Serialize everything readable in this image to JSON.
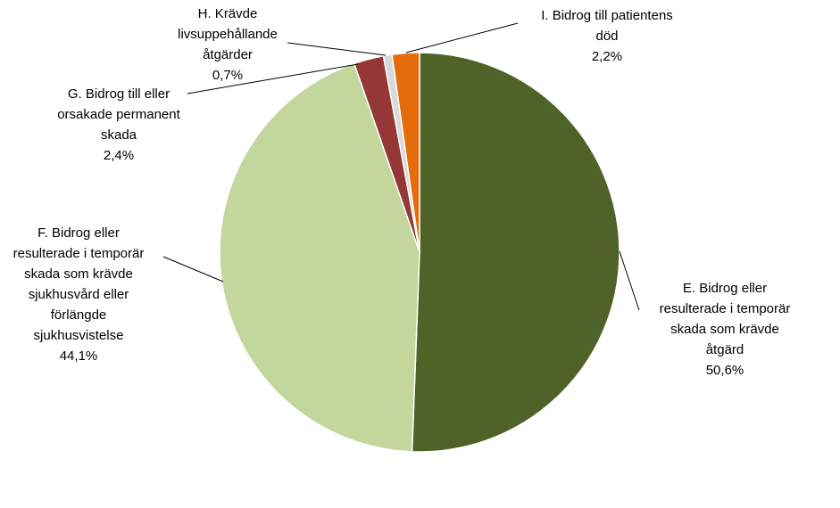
{
  "chart_data": {
    "type": "pie",
    "title": "",
    "start_angle_deg": 0,
    "direction": "clockwise",
    "slices": [
      {
        "label_lines": [
          "E. Bidrog eller",
          "resulterade i temporär",
          "skada som krävde",
          "åtgärd"
        ],
        "value": 50.6,
        "value_label": "50,6%",
        "color": "#4F6228"
      },
      {
        "label_lines": [
          "F. Bidrog eller",
          "resulterade i temporär",
          "skada som krävde",
          "sjukhusvård eller",
          "förlängde",
          "sjukhusvistelse"
        ],
        "value": 44.1,
        "value_label": "44,1%",
        "color": "#C3D69B"
      },
      {
        "label_lines": [
          "G. Bidrog till eller",
          "orsakade permanent",
          "skada"
        ],
        "value": 2.4,
        "value_label": "2,4%",
        "color": "#953735"
      },
      {
        "label_lines": [
          "H. Krävde",
          "livsuppehållande",
          "åtgärder"
        ],
        "value": 0.7,
        "value_label": "0,7%",
        "color": "#D9D9D9"
      },
      {
        "label_lines": [
          "I. Bidrog till patientens",
          "död"
        ],
        "value": 2.2,
        "value_label": "2,2%",
        "color": "#E46C0A"
      }
    ]
  }
}
